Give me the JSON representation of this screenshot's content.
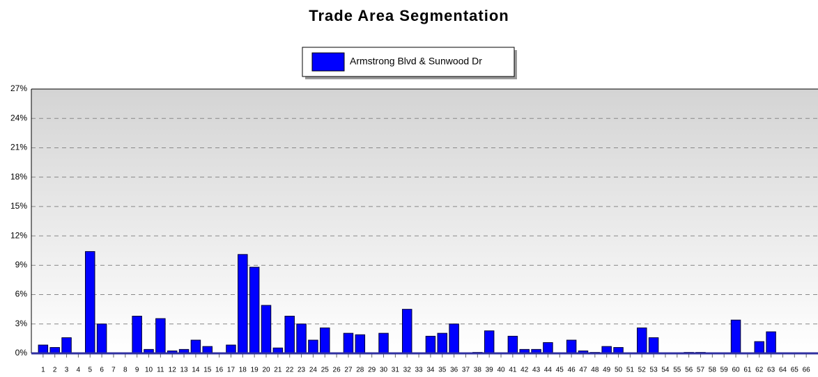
{
  "chart_data": {
    "type": "bar",
    "title": "Trade Area Segmentation",
    "categories": [
      "1",
      "2",
      "3",
      "4",
      "5",
      "6",
      "7",
      "8",
      "9",
      "10",
      "11",
      "12",
      "13",
      "14",
      "15",
      "16",
      "17",
      "18",
      "19",
      "20",
      "21",
      "22",
      "23",
      "24",
      "25",
      "26",
      "27",
      "28",
      "29",
      "30",
      "31",
      "32",
      "33",
      "34",
      "35",
      "36",
      "37",
      "38",
      "39",
      "40",
      "41",
      "42",
      "43",
      "44",
      "45",
      "46",
      "47",
      "48",
      "49",
      "50",
      "51",
      "52",
      "53",
      "54",
      "55",
      "56",
      "57",
      "58",
      "59",
      "60",
      "61",
      "62",
      "63",
      "64",
      "65",
      "66"
    ],
    "series": [
      {
        "name": "Armstrong Blvd & Sunwood Dr",
        "color": "#0000ff",
        "values": [
          0.85,
          0.6,
          1.6,
          0,
          10.4,
          3.0,
          0,
          0,
          3.8,
          0.4,
          3.55,
          0.25,
          0.4,
          1.35,
          0.7,
          0,
          0.85,
          10.1,
          8.8,
          4.9,
          0.55,
          3.8,
          3.0,
          1.35,
          2.6,
          0,
          2.05,
          1.9,
          0,
          2.05,
          0,
          4.5,
          0,
          1.75,
          2.05,
          3.0,
          0,
          0.1,
          2.3,
          0,
          1.75,
          0.4,
          0.4,
          1.1,
          0,
          1.35,
          0.25,
          0.1,
          0.7,
          0.6,
          0,
          2.6,
          1.6,
          0,
          0,
          0.1,
          0.1,
          0,
          0,
          3.4,
          0,
          1.2,
          2.2,
          0,
          0,
          0
        ]
      }
    ],
    "ylim": [
      0,
      27
    ],
    "yticks": [
      {
        "value": 0,
        "label": "0%"
      },
      {
        "value": 3,
        "label": "3%"
      },
      {
        "value": 6,
        "label": "6%"
      },
      {
        "value": 9,
        "label": "9%"
      },
      {
        "value": 12,
        "label": "12%"
      },
      {
        "value": 15,
        "label": "15%"
      },
      {
        "value": 18,
        "label": "18%"
      },
      {
        "value": 21,
        "label": "21%"
      },
      {
        "value": 24,
        "label": "24%"
      },
      {
        "value": 27,
        "label": "27%"
      }
    ],
    "grid": true
  }
}
